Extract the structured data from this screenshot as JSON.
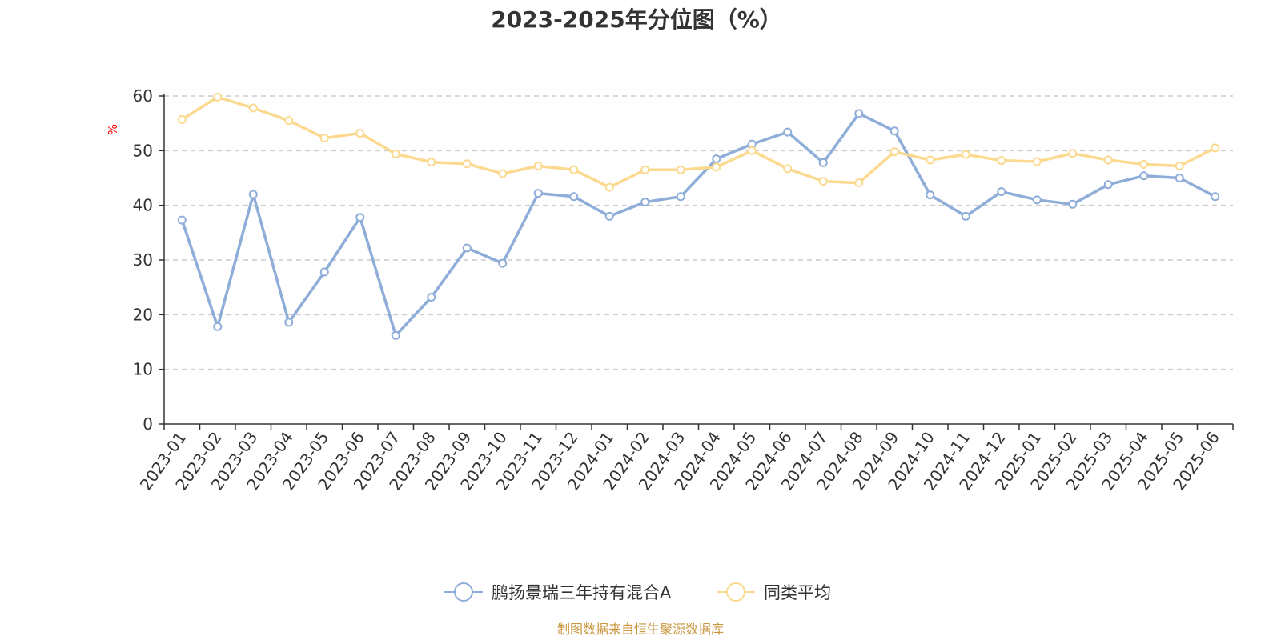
{
  "chart_data": {
    "type": "line",
    "title": "2023-2025年分位图（%）",
    "ylabel": "%",
    "xlabel": "",
    "ylim": [
      0,
      60
    ],
    "yticks": [
      0,
      10,
      20,
      30,
      40,
      50,
      60
    ],
    "grid": true,
    "legend": "bottom",
    "categories": [
      "2023-01",
      "2023-02",
      "2023-03",
      "2023-04",
      "2023-05",
      "2023-06",
      "2023-07",
      "2023-08",
      "2023-09",
      "2023-10",
      "2023-11",
      "2023-12",
      "2024-01",
      "2024-02",
      "2024-03",
      "2024-04",
      "2024-05",
      "2024-06",
      "2024-07",
      "2024-08",
      "2024-09",
      "2024-10",
      "2024-11",
      "2024-12",
      "2025-01",
      "2025-02",
      "2025-03",
      "2025-04",
      "2025-05",
      "2025-06"
    ],
    "series": [
      {
        "name": "鹏扬景瑞三年持有混合A",
        "color": "#8eadd8",
        "values": [
          37.3,
          17.8,
          42.0,
          18.6,
          27.8,
          37.8,
          16.2,
          23.2,
          32.2,
          29.4,
          42.2,
          41.6,
          38.0,
          40.6,
          41.6,
          48.5,
          51.2,
          53.4,
          47.8,
          56.8,
          53.6,
          41.9,
          38.0,
          42.5,
          41.0,
          40.2,
          43.8,
          45.4,
          45.0,
          41.6
        ]
      },
      {
        "name": "同类平均",
        "color": "#fbd98f",
        "values": [
          55.7,
          59.8,
          57.8,
          55.5,
          52.3,
          53.2,
          49.4,
          47.9,
          47.6,
          45.8,
          47.2,
          46.5,
          43.3,
          46.5,
          46.5,
          47.0,
          50.0,
          46.7,
          44.4,
          44.1,
          49.8,
          48.3,
          49.3,
          48.2,
          48.0,
          49.5,
          48.3,
          47.5,
          47.2,
          50.5
        ]
      }
    ]
  },
  "footer": {
    "source": "制图数据来自恒生聚源数据库"
  }
}
